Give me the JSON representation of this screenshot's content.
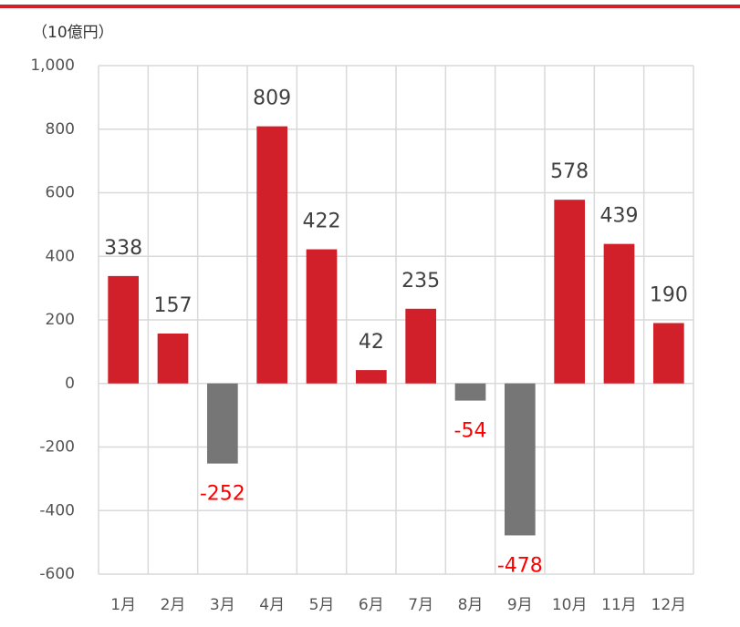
{
  "chart_data": {
    "type": "bar",
    "unit_label": "（10億円）",
    "categories": [
      "1月",
      "2月",
      "3月",
      "4月",
      "5月",
      "6月",
      "7月",
      "8月",
      "9月",
      "10月",
      "11月",
      "12月"
    ],
    "values": [
      338,
      157,
      -252,
      809,
      422,
      42,
      235,
      -54,
      -478,
      578,
      439,
      190
    ],
    "positive_color": "#d2202a",
    "negative_color": "#767676",
    "positive_label_color": "#404040",
    "negative_label_color": "#ff0000",
    "ylim": [
      -600,
      1000
    ],
    "yticks": [
      -600,
      -400,
      -200,
      0,
      200,
      400,
      600,
      800,
      {
        "value": 1000,
        "label": "1,000"
      }
    ],
    "grid": true
  }
}
